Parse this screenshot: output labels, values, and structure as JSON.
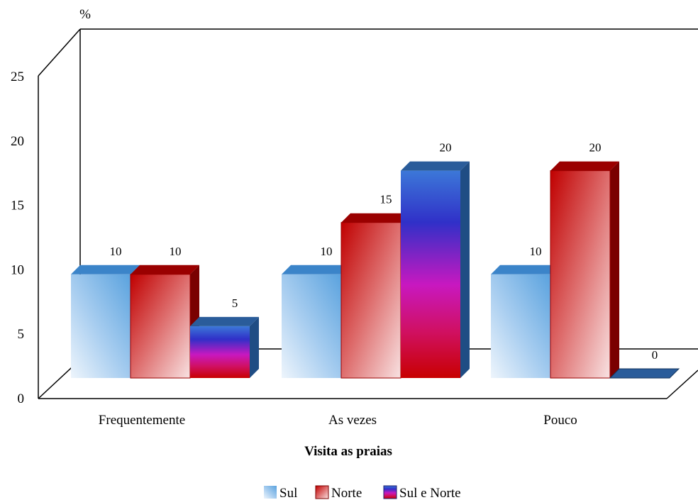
{
  "chart_data": {
    "type": "bar",
    "title": "",
    "xlabel": "Visita as praias",
    "ylabel": "%",
    "ylim": [
      0,
      25
    ],
    "y_ticks": [
      "0",
      "5",
      "10",
      "15",
      "20",
      "25"
    ],
    "categories": [
      "Frequentemente",
      "As vezes",
      "Pouco"
    ],
    "series": [
      {
        "name": "Sul",
        "values": [
          10,
          10,
          10
        ],
        "color": "#5ea5e0"
      },
      {
        "name": "Norte",
        "values": [
          10,
          15,
          20
        ],
        "color": "#c00000"
      },
      {
        "name": "Sul e Norte",
        "values": [
          5,
          20,
          0
        ],
        "color": "#3a3ad0"
      }
    ],
    "data_labels": [
      [
        "10",
        "10",
        "10"
      ],
      [
        "10",
        "15",
        "20"
      ],
      [
        "5",
        "20",
        "0"
      ]
    ],
    "legend_position": "bottom",
    "style": "3d-clustered"
  }
}
